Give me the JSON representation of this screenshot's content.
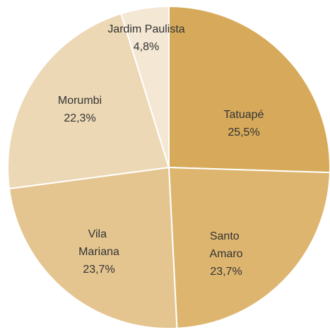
{
  "chart_data": {
    "type": "pie",
    "categories": [
      "Tatuapé",
      "Santo Amaro",
      "Vila Mariana",
      "Morumbi",
      "Jardim Paulista"
    ],
    "values": [
      25.5,
      23.7,
      23.7,
      22.3,
      4.8
    ],
    "value_labels": [
      "25,5%",
      "23,7%",
      "23,7%",
      "22,3%",
      "4,8%"
    ],
    "colors": [
      "#d7aa5b",
      "#ddb56f",
      "#e4c590",
      "#edd8b5",
      "#f4e7d4"
    ]
  }
}
